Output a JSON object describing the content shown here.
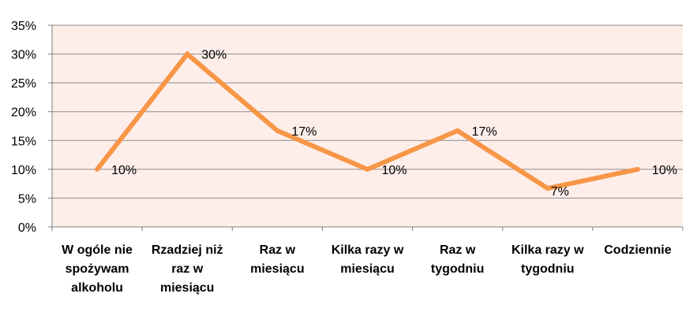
{
  "chart_data": {
    "type": "line",
    "title": "",
    "xlabel": "",
    "ylabel": "",
    "categories": [
      "W ogóle nie spożywam alkoholu",
      "Rzadziej niż raz w miesiącu",
      "Raz w miesiącu",
      "Kilka razy w miesiącu",
      "Raz w tygodniu",
      "Kilka razy w tygodniu",
      "Codziennie"
    ],
    "category_lines": [
      [
        "W ogóle nie",
        "spożywam",
        "alkoholu"
      ],
      [
        "Rzadziej niż",
        "raz w",
        "miesiącu"
      ],
      [
        "Raz w",
        "miesiącu"
      ],
      [
        "Kilka razy w",
        "miesiącu"
      ],
      [
        "Raz w",
        "tygodniu"
      ],
      [
        "Kilka razy w",
        "tygodniu"
      ],
      [
        "Codziennie"
      ]
    ],
    "values": [
      10,
      30,
      16.7,
      10,
      16.7,
      6.7,
      10
    ],
    "data_labels": [
      "10%",
      "30%",
      "17%",
      "10%",
      "17%",
      "7%",
      "10%"
    ],
    "ylim": [
      0,
      35
    ],
    "y_ticks": [
      0,
      5,
      10,
      15,
      20,
      25,
      30,
      35
    ],
    "y_tick_labels": [
      "0%",
      "5%",
      "10%",
      "15%",
      "20%",
      "25%",
      "30%",
      "35%"
    ],
    "grid": true,
    "legend": "none",
    "colors": {
      "line": "#F79646",
      "plot_background": "#FDEEEA",
      "grid": "#8C8C8C",
      "axis": "#808080"
    }
  }
}
